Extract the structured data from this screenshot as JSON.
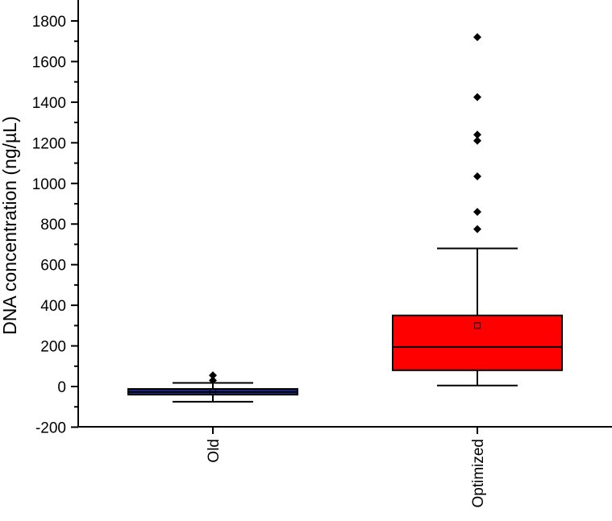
{
  "chart_data": {
    "type": "box",
    "ylabel": "DNA concentration (ng/µL)",
    "xlabel": "",
    "ylim": [
      -200,
      1900
    ],
    "yticks": [
      -200,
      0,
      200,
      400,
      600,
      800,
      1000,
      1200,
      1400,
      1600,
      1800
    ],
    "grid": false,
    "categories": [
      "Old",
      "Optimized"
    ],
    "boxes": [
      {
        "name": "Old",
        "whisker_low": -75,
        "q1": -40,
        "median": -27,
        "q3": -12,
        "whisker_high": 18,
        "mean": -25,
        "outliers": [
          30,
          55
        ],
        "color": "#1f2a8c"
      },
      {
        "name": "Optimized",
        "whisker_low": 5,
        "q1": 80,
        "median": 195,
        "q3": 350,
        "whisker_high": 680,
        "mean": 300,
        "outliers": [
          775,
          860,
          1035,
          1210,
          1240,
          1425,
          1720
        ],
        "color": "#ff0000"
      }
    ]
  }
}
